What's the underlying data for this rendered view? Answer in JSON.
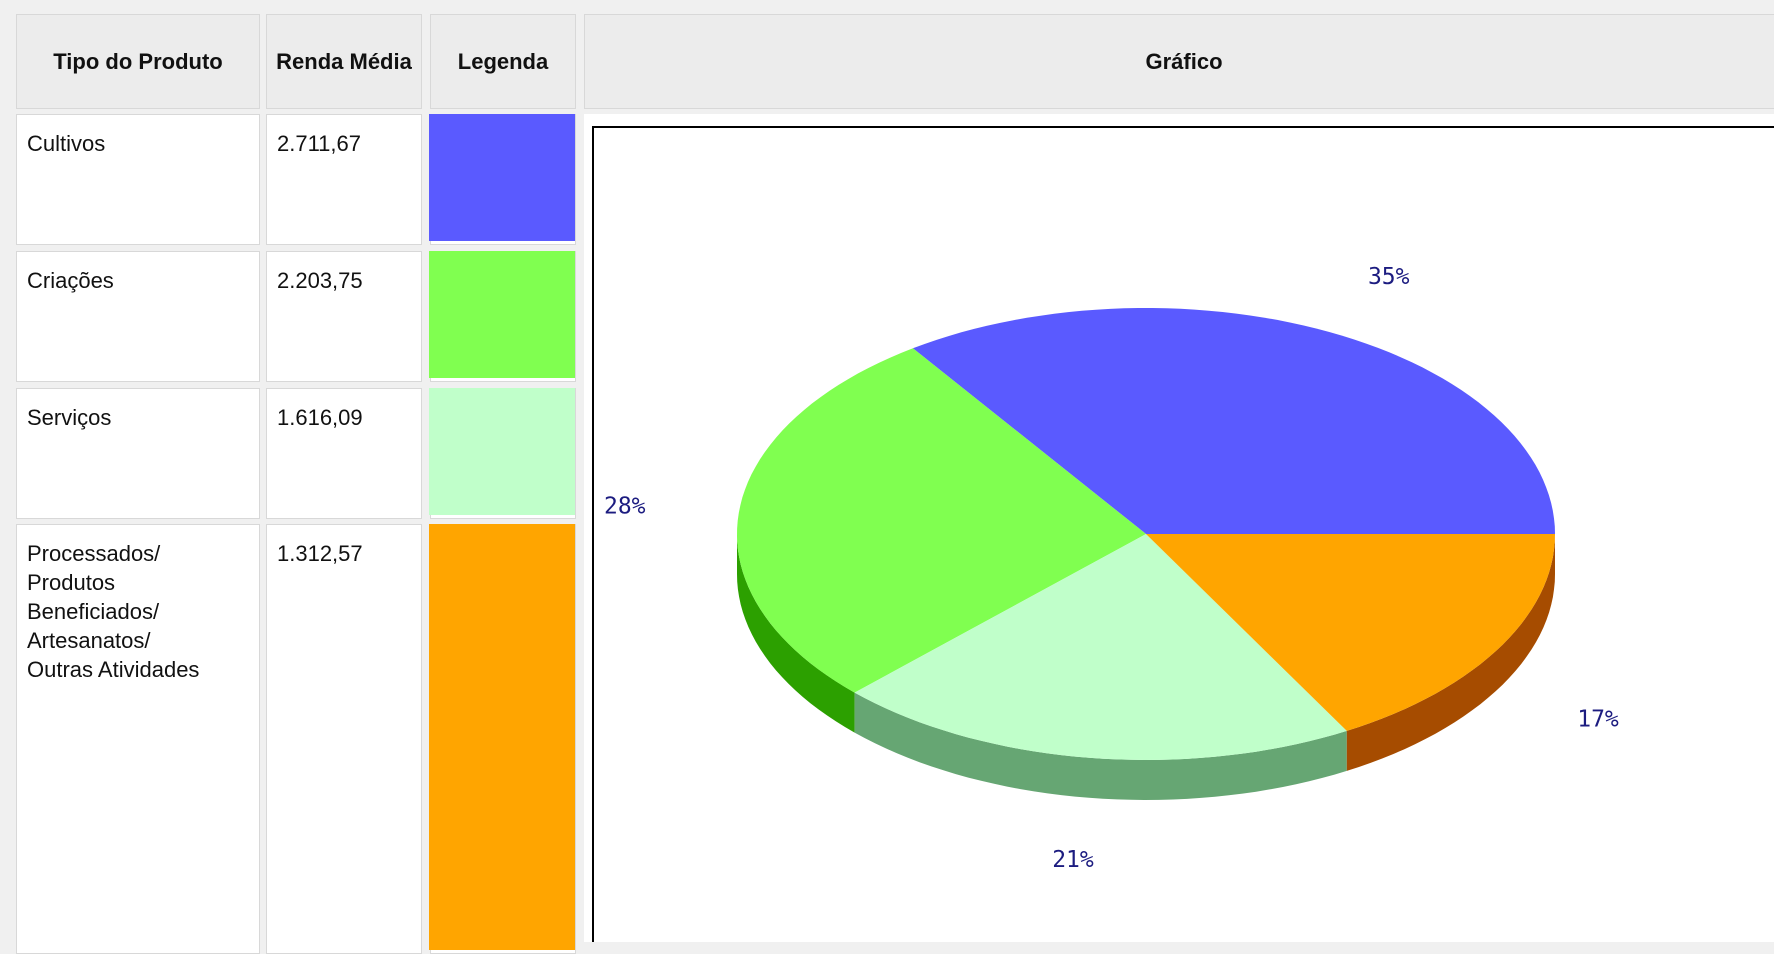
{
  "table": {
    "headers": [
      "Tipo do Produto",
      "Renda Média",
      "Legenda",
      "Gráfico"
    ],
    "rows": [
      {
        "product": "Cultivos",
        "renda": "2.711,67"
      },
      {
        "product": "Criações",
        "renda": "2.203,75"
      },
      {
        "product": "Serviços",
        "renda": "1.616,09"
      },
      {
        "product": "Processados/\nProdutos\nBeneficiados/\nArtesanatos/\nOutras Atividades",
        "renda": "1.312,57"
      }
    ]
  },
  "chart_data": {
    "type": "pie",
    "values": [
      35,
      28,
      21,
      17
    ],
    "value_labels": [
      "35%",
      "28%",
      "21%",
      "17%"
    ],
    "colors": [
      "#5a5aff",
      "#80ff50",
      "#c0ffca",
      "#ffa500"
    ],
    "side_colors": [
      "#3030b0",
      "#2ca000",
      "#66a673",
      "#a64c00"
    ],
    "label_color": "#1c1c80"
  }
}
